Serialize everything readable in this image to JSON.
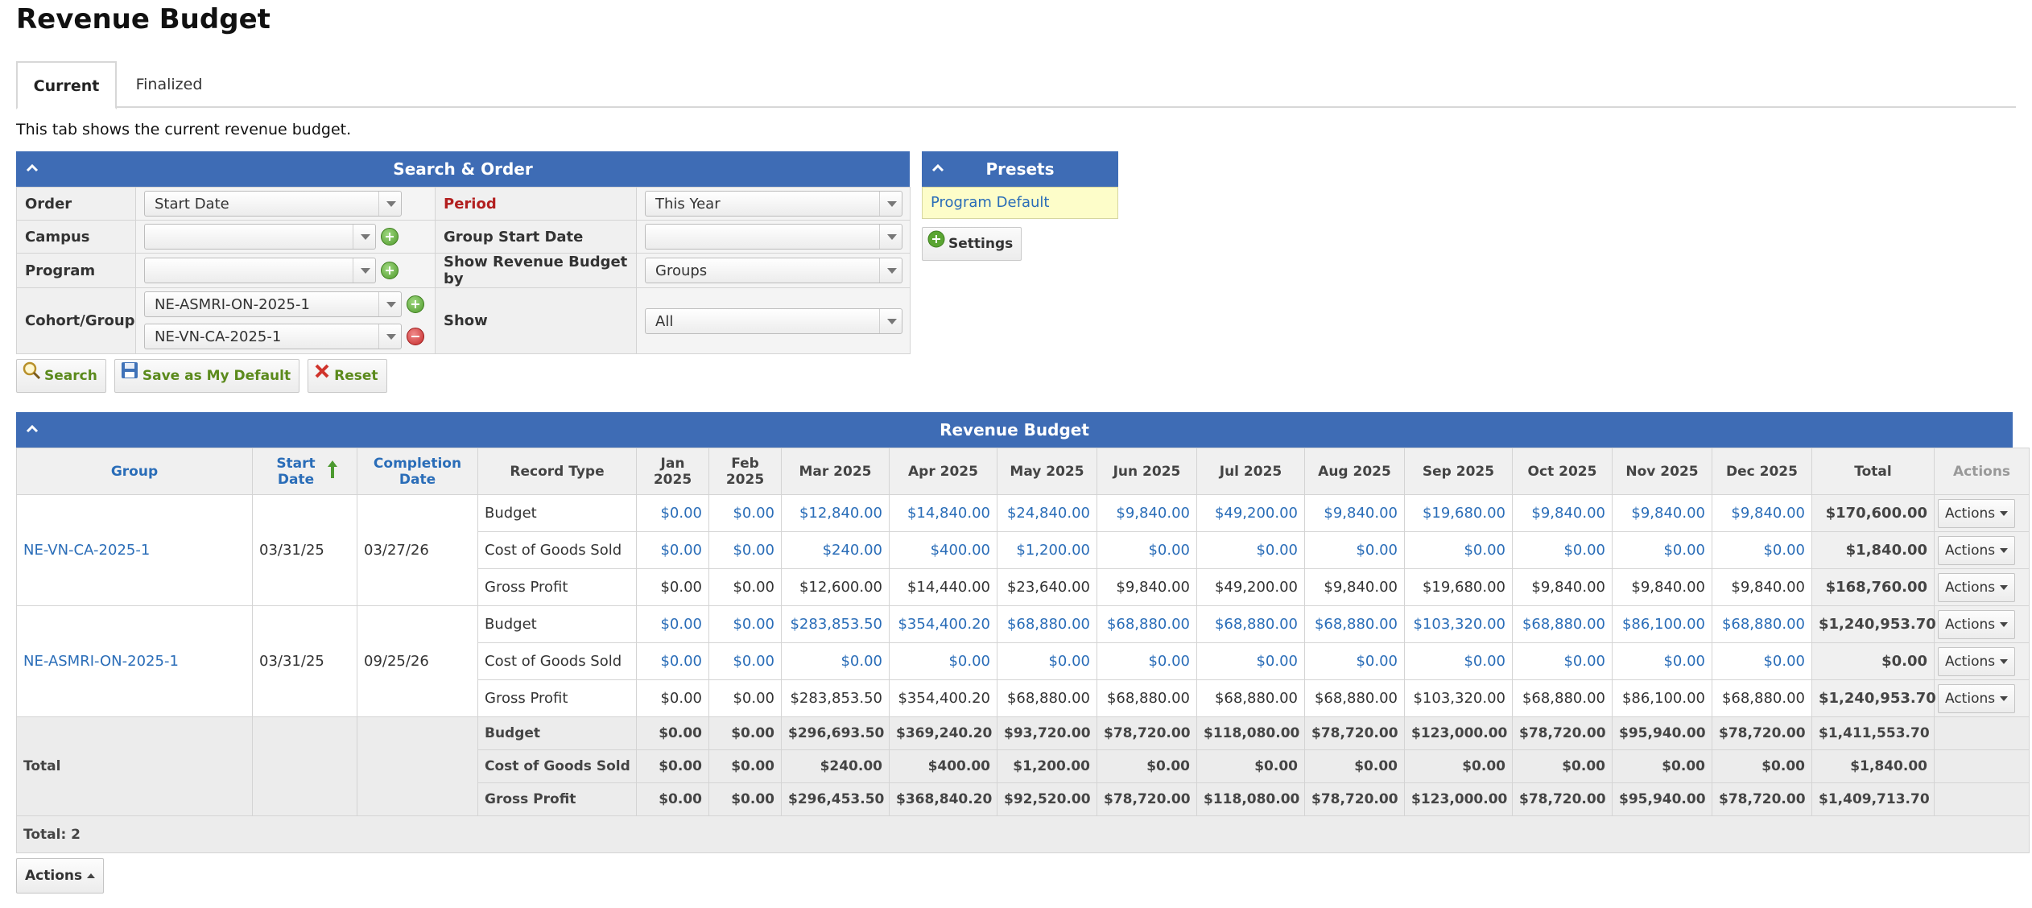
{
  "page": {
    "title": "Revenue Budget",
    "description": "This tab shows the current revenue budget."
  },
  "tabs": [
    {
      "label": "Current",
      "active": true
    },
    {
      "label": "Finalized",
      "active": false
    }
  ],
  "search": {
    "title": "Search & Order",
    "order_label": "Order",
    "order_value": "Start Date",
    "period_label": "Period",
    "period_value": "This Year",
    "campus_label": "Campus",
    "campus_value": "",
    "group_start_label": "Group Start Date",
    "group_start_value": "",
    "program_label": "Program",
    "program_value": "",
    "show_by_label": "Show Revenue Budget by",
    "show_by_value": "Groups",
    "cohort_label": "Cohort/Group",
    "cohort_values": [
      "NE-ASMRI-ON-2025-1",
      "NE-VN-CA-2025-1"
    ],
    "show_label": "Show",
    "show_value": "All"
  },
  "presets": {
    "title": "Presets",
    "item": "Program Default",
    "settings_label": "Settings"
  },
  "buttons": {
    "search": "Search",
    "save_default": "Save as My Default",
    "reset": "Reset"
  },
  "table": {
    "title": "Revenue Budget",
    "headers": {
      "group": "Group",
      "start_date": "Start Date",
      "completion_date": "Completion Date",
      "record_type": "Record Type",
      "months": [
        "Jan 2025",
        "Feb 2025",
        "Mar 2025",
        "Apr 2025",
        "May 2025",
        "Jun 2025",
        "Jul 2025",
        "Aug 2025",
        "Sep 2025",
        "Oct 2025",
        "Nov 2025",
        "Dec 2025"
      ],
      "total": "Total",
      "actions": "Actions"
    },
    "action_label": "Actions",
    "groups": [
      {
        "name": "NE-VN-CA-2025-1",
        "start": "03/31/25",
        "completion": "03/27/26",
        "rows": [
          {
            "type": "Budget",
            "values": [
              "$0.00",
              "$0.00",
              "$12,840.00",
              "$14,840.00",
              "$24,840.00",
              "$9,840.00",
              "$49,200.00",
              "$9,840.00",
              "$19,680.00",
              "$9,840.00",
              "$9,840.00",
              "$9,840.00"
            ],
            "total": "$170,600.00",
            "link": true
          },
          {
            "type": "Cost of Goods Sold",
            "values": [
              "$0.00",
              "$0.00",
              "$240.00",
              "$400.00",
              "$1,200.00",
              "$0.00",
              "$0.00",
              "$0.00",
              "$0.00",
              "$0.00",
              "$0.00",
              "$0.00"
            ],
            "total": "$1,840.00",
            "link": true
          },
          {
            "type": "Gross Profit",
            "values": [
              "$0.00",
              "$0.00",
              "$12,600.00",
              "$14,440.00",
              "$23,640.00",
              "$9,840.00",
              "$49,200.00",
              "$9,840.00",
              "$19,680.00",
              "$9,840.00",
              "$9,840.00",
              "$9,840.00"
            ],
            "total": "$168,760.00",
            "link": false
          }
        ]
      },
      {
        "name": "NE-ASMRI-ON-2025-1",
        "start": "03/31/25",
        "completion": "09/25/26",
        "rows": [
          {
            "type": "Budget",
            "values": [
              "$0.00",
              "$0.00",
              "$283,853.50",
              "$354,400.20",
              "$68,880.00",
              "$68,880.00",
              "$68,880.00",
              "$68,880.00",
              "$103,320.00",
              "$68,880.00",
              "$86,100.00",
              "$68,880.00"
            ],
            "total": "$1,240,953.70",
            "link": true
          },
          {
            "type": "Cost of Goods Sold",
            "values": [
              "$0.00",
              "$0.00",
              "$0.00",
              "$0.00",
              "$0.00",
              "$0.00",
              "$0.00",
              "$0.00",
              "$0.00",
              "$0.00",
              "$0.00",
              "$0.00"
            ],
            "total": "$0.00",
            "link": true
          },
          {
            "type": "Gross Profit",
            "values": [
              "$0.00",
              "$0.00",
              "$283,853.50",
              "$354,400.20",
              "$68,880.00",
              "$68,880.00",
              "$68,880.00",
              "$68,880.00",
              "$103,320.00",
              "$68,880.00",
              "$86,100.00",
              "$68,880.00"
            ],
            "total": "$1,240,953.70",
            "link": false
          }
        ]
      }
    ],
    "totals": {
      "label": "Total",
      "rows": [
        {
          "type": "Budget",
          "values": [
            "$0.00",
            "$0.00",
            "$296,693.50",
            "$369,240.20",
            "$93,720.00",
            "$78,720.00",
            "$118,080.00",
            "$78,720.00",
            "$123,000.00",
            "$78,720.00",
            "$95,940.00",
            "$78,720.00"
          ],
          "total": "$1,411,553.70"
        },
        {
          "type": "Cost of Goods Sold",
          "values": [
            "$0.00",
            "$0.00",
            "$240.00",
            "$400.00",
            "$1,200.00",
            "$0.00",
            "$0.00",
            "$0.00",
            "$0.00",
            "$0.00",
            "$0.00",
            "$0.00"
          ],
          "total": "$1,840.00"
        },
        {
          "type": "Gross Profit",
          "values": [
            "$0.00",
            "$0.00",
            "$296,453.50",
            "$368,840.20",
            "$92,520.00",
            "$78,720.00",
            "$118,080.00",
            "$78,720.00",
            "$123,000.00",
            "$78,720.00",
            "$95,940.00",
            "$78,720.00"
          ],
          "total": "$1,409,713.70"
        }
      ]
    },
    "count_label": "Total: 2"
  },
  "bottom_actions": "Actions"
}
